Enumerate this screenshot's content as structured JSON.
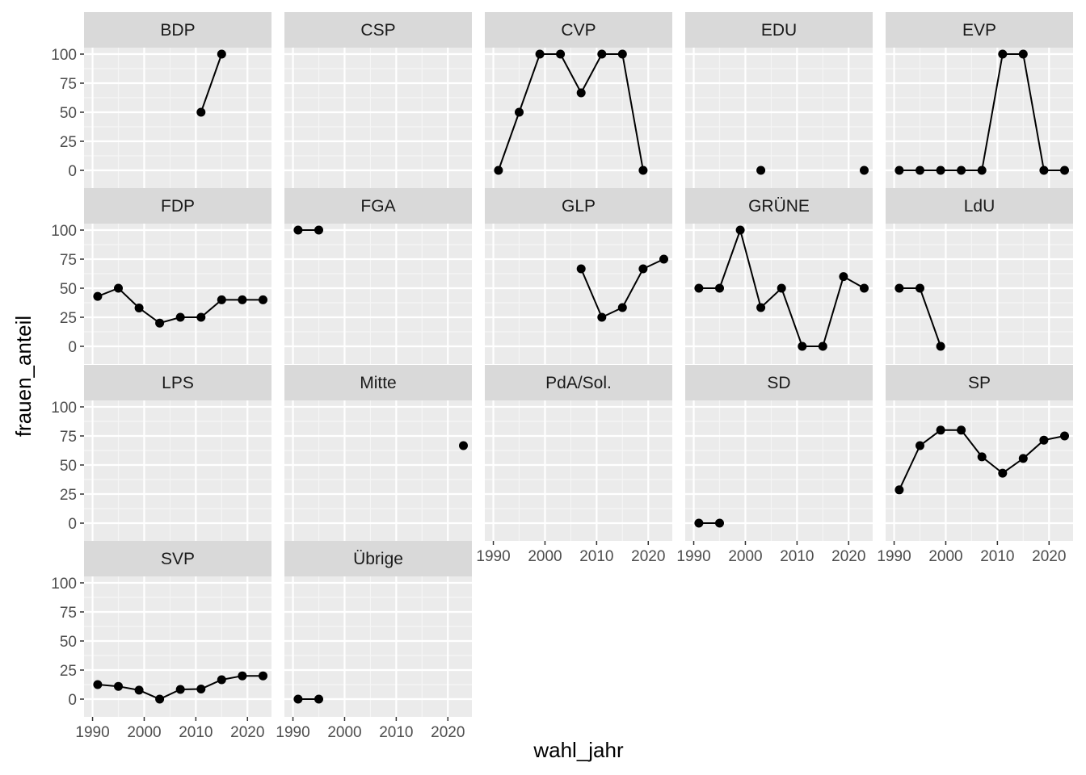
{
  "chart_data": {
    "type": "line",
    "facet_layout": "wrap",
    "xlabel": "wahl_jahr",
    "ylabel": "frauen_anteil",
    "xlim": [
      1990,
      2023
    ],
    "ylim": [
      0,
      100
    ],
    "x_ticks": [
      1990,
      2000,
      2010,
      2020
    ],
    "y_ticks": [
      0,
      25,
      50,
      75,
      100
    ],
    "grid": true,
    "legend": "none",
    "colors": {
      "panel_background": "#ebebeb",
      "strip_background": "#d9d9d9",
      "grid_major": "#ffffff",
      "grid_minor": "#f5f5f5",
      "series": "#000000"
    },
    "facets": [
      {
        "name": "BDP",
        "points": [
          [
            2011,
            50
          ],
          [
            2015,
            100
          ]
        ]
      },
      {
        "name": "CSP",
        "points": []
      },
      {
        "name": "CVP",
        "points": [
          [
            1991,
            0
          ],
          [
            1995,
            50
          ],
          [
            1999,
            100
          ],
          [
            2003,
            100
          ],
          [
            2007,
            66.7
          ],
          [
            2011,
            100
          ],
          [
            2015,
            100
          ],
          [
            2019,
            0
          ]
        ]
      },
      {
        "name": "EDU",
        "points": [
          [
            2003,
            0
          ],
          [
            2023,
            0
          ]
        ],
        "connect": false
      },
      {
        "name": "EVP",
        "points": [
          [
            1991,
            0
          ],
          [
            1995,
            0
          ],
          [
            1999,
            0
          ],
          [
            2003,
            0
          ],
          [
            2007,
            0
          ],
          [
            2011,
            100
          ],
          [
            2015,
            100
          ],
          [
            2019,
            0
          ],
          [
            2023,
            0
          ]
        ]
      },
      {
        "name": "FDP",
        "points": [
          [
            1991,
            43
          ],
          [
            1995,
            50
          ],
          [
            1999,
            33
          ],
          [
            2003,
            20
          ],
          [
            2007,
            25
          ],
          [
            2011,
            25
          ],
          [
            2015,
            40
          ],
          [
            2019,
            40
          ],
          [
            2023,
            40
          ]
        ]
      },
      {
        "name": "FGA",
        "points": [
          [
            1991,
            100
          ],
          [
            1995,
            100
          ]
        ]
      },
      {
        "name": "GLP",
        "points": [
          [
            2007,
            66.7
          ],
          [
            2011,
            25
          ],
          [
            2015,
            33.3
          ],
          [
            2019,
            66.7
          ],
          [
            2023,
            75
          ]
        ]
      },
      {
        "name": "GRÜNE",
        "points": [
          [
            1991,
            50
          ],
          [
            1995,
            50
          ],
          [
            1999,
            100
          ],
          [
            2003,
            33.3
          ],
          [
            2007,
            50
          ],
          [
            2011,
            0
          ],
          [
            2015,
            0
          ],
          [
            2019,
            60
          ],
          [
            2023,
            50
          ]
        ]
      },
      {
        "name": "LdU",
        "points": [
          [
            1991,
            50
          ],
          [
            1995,
            50
          ],
          [
            1999,
            0
          ]
        ]
      },
      {
        "name": "LPS",
        "points": []
      },
      {
        "name": "Mitte",
        "points": [
          [
            2023,
            66.7
          ]
        ]
      },
      {
        "name": "PdA/Sol.",
        "points": []
      },
      {
        "name": "SD",
        "points": [
          [
            1991,
            0
          ],
          [
            1995,
            0
          ]
        ]
      },
      {
        "name": "SP",
        "points": [
          [
            1991,
            28.6
          ],
          [
            1995,
            66.7
          ],
          [
            1999,
            80
          ],
          [
            2003,
            80
          ],
          [
            2007,
            57
          ],
          [
            2011,
            43
          ],
          [
            2015,
            55.6
          ],
          [
            2019,
            71.4
          ],
          [
            2023,
            75
          ]
        ]
      },
      {
        "name": "SVP",
        "points": [
          [
            1991,
            12.5
          ],
          [
            1995,
            11
          ],
          [
            1999,
            7.7
          ],
          [
            2003,
            0
          ],
          [
            2007,
            8.3
          ],
          [
            2011,
            8.7
          ],
          [
            2015,
            16.7
          ],
          [
            2019,
            20
          ],
          [
            2023,
            20
          ]
        ]
      },
      {
        "name": "Übrige",
        "points": [
          [
            1991,
            0
          ],
          [
            1995,
            0
          ]
        ]
      }
    ]
  }
}
